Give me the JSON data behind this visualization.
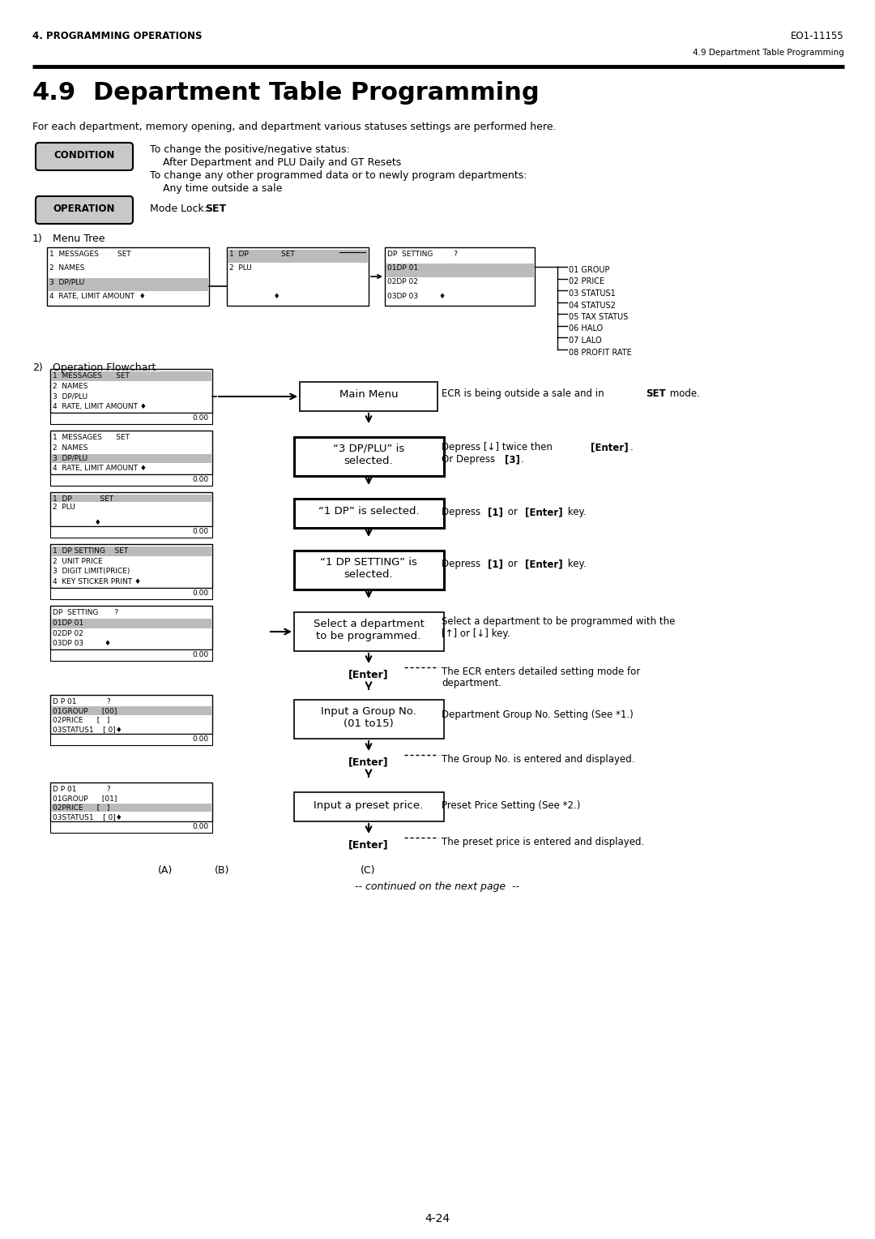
{
  "header_left": "4. PROGRAMMING OPERATIONS",
  "header_right": "EO1-11155",
  "subheader_right": "4.9 Department Table Programming",
  "section_title": "4.9",
  "section_title2": "Department Table Programming",
  "intro_text": "For each department, memory opening, and department various statuses settings are performed here.",
  "condition_label": "CONDITION",
  "condition_lines": [
    "To change the positive/negative status:",
    "    After Department and PLU Daily and GT Resets",
    "To change any other programmed data or to newly program departments:",
    "    Any time outside a sale"
  ],
  "operation_label": "OPERATION",
  "operation_text1": "Mode Lock: ",
  "operation_text2": "SET",
  "section1_label": "1)",
  "section1_title": "Menu Tree",
  "section2_label": "2)",
  "section2_title": "Operation Flowchart",
  "footer_text": "4-24",
  "continued_text": "-- continued on the next page  --",
  "right_labels": [
    "01 GROUP",
    "02 PRICE",
    "03 STATUS1",
    "04 STATUS2",
    "05 TAX STATUS",
    "06 HALO",
    "07 LALO",
    "08 PROFIT RATE"
  ]
}
